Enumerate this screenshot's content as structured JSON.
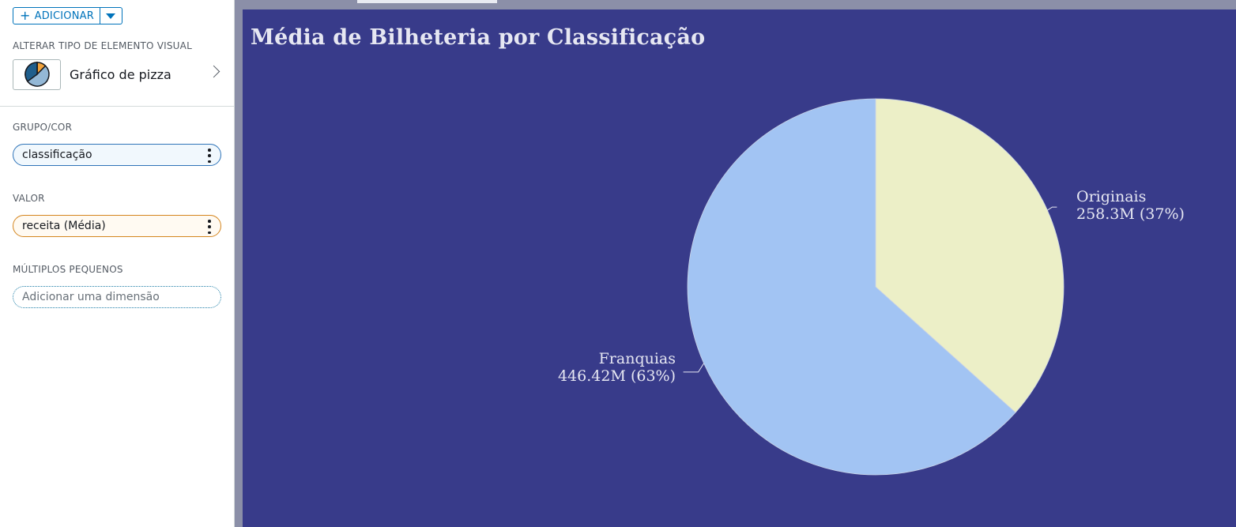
{
  "panel": {
    "add_button": {
      "label": "ADICIONAR",
      "icon": "plus-icon",
      "caret_icon": "caret-down-icon"
    },
    "visual_type": {
      "section_label": "ALTERAR TIPO DE ELEMENTO VISUAL",
      "label": "Gráfico de pizza",
      "icon": "pie-chart-icon"
    },
    "group": {
      "section_label": "GRUPO/COR",
      "field": "classificação"
    },
    "value": {
      "section_label": "VALOR",
      "field": "receita (Média)"
    },
    "small_multiples": {
      "section_label": "MÚLTIPLOS PEQUENOS",
      "placeholder": "Adicionar uma dimensão"
    }
  },
  "colors": {
    "canvas_bg": "#383b8a",
    "slice_originais": "#ecefc7",
    "slice_franquias": "#a2c4f3",
    "field_blue": "#2e73b8",
    "field_orange": "#d4851e"
  },
  "chart": {
    "title": "Média de Bilheteria por Classificação",
    "slices": [
      {
        "name": "Originais",
        "value_label": "258.3M (37%)"
      },
      {
        "name": "Franquias",
        "value_label": "446.42M (63%)"
      }
    ]
  },
  "chart_data": {
    "type": "pie",
    "title": "Média de Bilheteria por Classificação",
    "categories": [
      "Originais",
      "Franquias"
    ],
    "values": [
      258.3,
      446.42
    ],
    "percentages": [
      37,
      63
    ],
    "unit": "M"
  }
}
